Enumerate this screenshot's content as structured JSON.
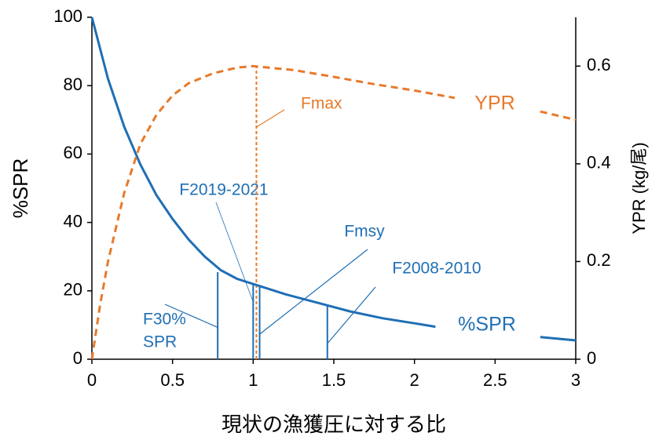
{
  "chart_data": {
    "type": "line",
    "xlabel": "現状の漁獲圧に対する比",
    "ylabel": "%SPR",
    "y2label": "YPR (kg/尾)",
    "xlim": [
      0,
      3
    ],
    "xticks": [
      0,
      0.5,
      1,
      1.5,
      2,
      2.5,
      3
    ],
    "ylim": [
      0,
      100
    ],
    "yticks": [
      0,
      20,
      40,
      60,
      80,
      100
    ],
    "y2lim": [
      0,
      0.7
    ],
    "y2ticks": [
      0,
      0.2,
      0.4,
      0.6
    ],
    "series": [
      {
        "name": "%SPR",
        "color": "#1f6fb4",
        "dash": false,
        "x": [
          0,
          0.1,
          0.2,
          0.3,
          0.4,
          0.5,
          0.6,
          0.7,
          0.8,
          0.9,
          1.0,
          1.2,
          1.4,
          1.6,
          1.8,
          2.0,
          2.13,
          2.5,
          2.78,
          3.0
        ],
        "values": [
          100,
          82,
          68,
          57,
          48,
          41,
          35,
          30,
          26,
          23.5,
          22,
          19,
          16.5,
          14,
          12,
          10.5,
          9.5,
          null,
          6.5,
          5.5
        ]
      },
      {
        "name": "YPR",
        "color": "#e8792b",
        "dash": true,
        "axis": "y2",
        "x": [
          0,
          0.05,
          0.1,
          0.2,
          0.3,
          0.4,
          0.5,
          0.6,
          0.75,
          0.9,
          1.0,
          1.25,
          1.5,
          1.75,
          2.0,
          2.25,
          2.5,
          2.78,
          3.0
        ],
        "values": [
          0,
          0.11,
          0.2,
          0.34,
          0.44,
          0.5,
          0.54,
          0.565,
          0.585,
          0.597,
          0.6,
          0.592,
          0.578,
          0.563,
          0.55,
          0.535,
          null,
          0.507,
          0.49
        ]
      }
    ],
    "reference_lines": [
      {
        "label": [
          "F30%",
          "SPR"
        ],
        "x": 0.78,
        "value": 25.5,
        "color": "#1f6fb4"
      },
      {
        "label": [
          "F2019-2021"
        ],
        "x": 1.0,
        "value": 22,
        "color": "#1f6fb4"
      },
      {
        "label": [
          "Fmsy"
        ],
        "x": 1.04,
        "value": 21.5,
        "color": "#1f6fb4"
      },
      {
        "label": [
          "F2008-2010"
        ],
        "x": 1.46,
        "value": 16,
        "color": "#1f6fb4"
      },
      {
        "label": [
          "Fmax"
        ],
        "x": 1.02,
        "value": 0.6,
        "axis": "y2",
        "color": "#e8792b"
      }
    ]
  }
}
